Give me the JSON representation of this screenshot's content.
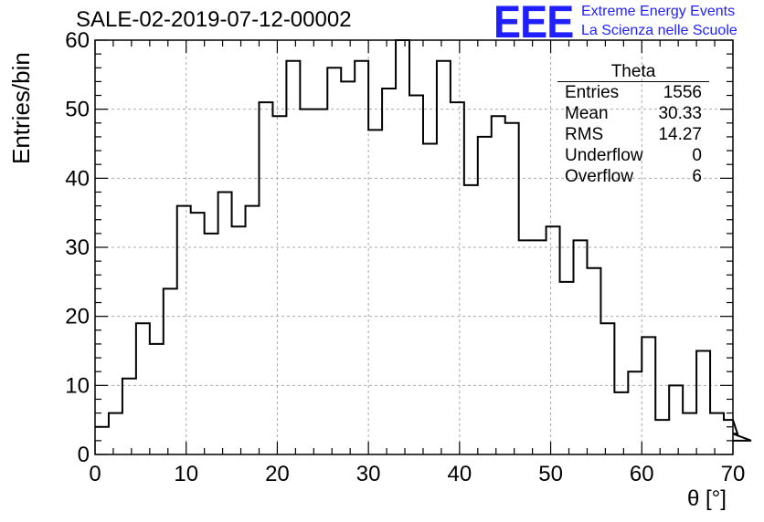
{
  "title": "SALE-02-2019-07-12-00002",
  "logo": {
    "mark": "EEE",
    "line1": "Extreme Energy Events",
    "line2": "La Scienza nelle Scuole"
  },
  "stats": {
    "name": "Theta",
    "rows": [
      {
        "label": "Entries",
        "value": "1556"
      },
      {
        "label": "Mean",
        "value": "30.33"
      },
      {
        "label": "RMS",
        "value": "14.27"
      },
      {
        "label": "Underflow",
        "value": "0"
      },
      {
        "label": "Overflow",
        "value": "6"
      }
    ]
  },
  "chart_data": {
    "type": "bar",
    "title": "SALE-02-2019-07-12-00002",
    "xlabel": "θ [°]",
    "ylabel": "Entries/bin",
    "xlim": [
      0,
      70
    ],
    "ylim": [
      0,
      60
    ],
    "xticks": [
      0,
      10,
      20,
      30,
      40,
      50,
      60,
      70
    ],
    "yticks": [
      0,
      10,
      20,
      30,
      40,
      50,
      60
    ],
    "grid": true,
    "bin_width": 1.5,
    "values": [
      4,
      6,
      11,
      19,
      16,
      24,
      36,
      35,
      32,
      38,
      33,
      36,
      51,
      49,
      57,
      50,
      50,
      56,
      54,
      57,
      47,
      53,
      60,
      52,
      45,
      57,
      51,
      39,
      46,
      49,
      48,
      31,
      31,
      33,
      25,
      31,
      27,
      19,
      9,
      12,
      17,
      5,
      10,
      6,
      15,
      6,
      5,
      3,
      2
    ]
  }
}
